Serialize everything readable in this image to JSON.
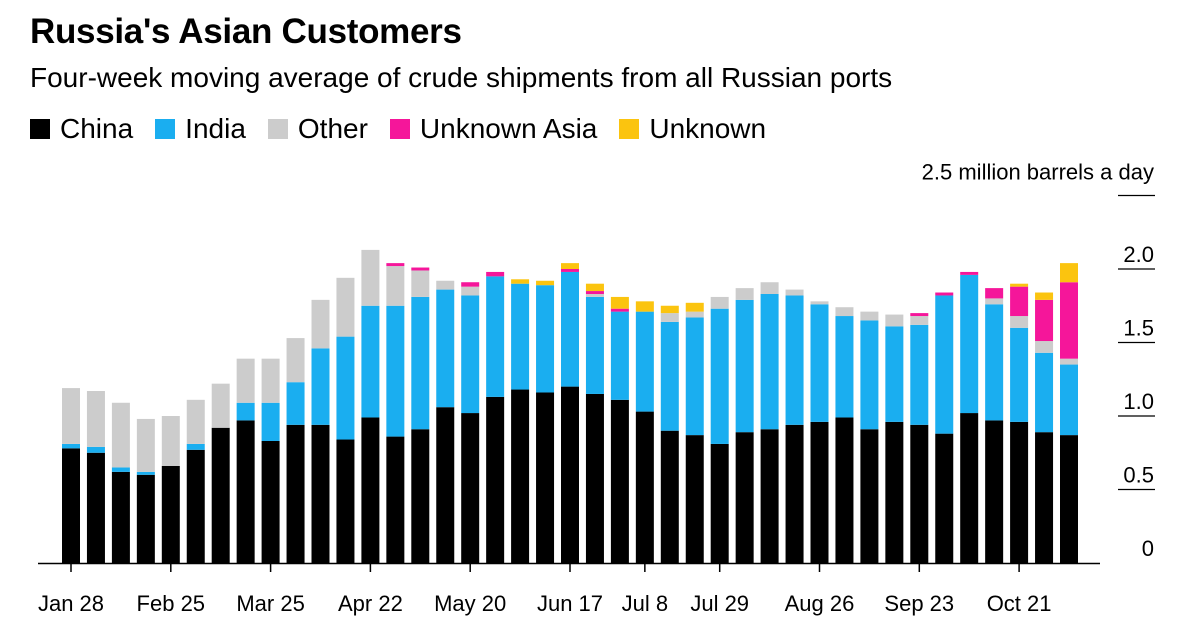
{
  "title": "Russia's Asian Customers",
  "subtitle": "Four-week moving average of crude shipments from all Russian ports",
  "colors": {
    "China": "#000000",
    "India": "#1aaef0",
    "Other": "#cccccc",
    "Unknown Asia": "#f5169a",
    "Unknown": "#fbc40f"
  },
  "chart_data": {
    "type": "bar",
    "stacked": true,
    "unit_label": "2.5 million barrels a day",
    "ylim": [
      0,
      2.5
    ],
    "y_ticks": [
      {
        "value": 0,
        "label": "0"
      },
      {
        "value": 0.5,
        "label": "0.5"
      },
      {
        "value": 1.0,
        "label": "1.0"
      },
      {
        "value": 1.5,
        "label": "1.5"
      },
      {
        "value": 2.0,
        "label": "2.0"
      }
    ],
    "x_tick_labels": [
      {
        "index": 0,
        "label": "Jan 28"
      },
      {
        "index": 4,
        "label": "Feb 25"
      },
      {
        "index": 8,
        "label": "Mar 25"
      },
      {
        "index": 12,
        "label": "Apr 22"
      },
      {
        "index": 16,
        "label": "May 20"
      },
      {
        "index": 20,
        "label": "Jun 17"
      },
      {
        "index": 23,
        "label": "Jul 8"
      },
      {
        "index": 26,
        "label": "Jul 29"
      },
      {
        "index": 30,
        "label": "Aug 26"
      },
      {
        "index": 34,
        "label": "Sep 23"
      },
      {
        "index": 38,
        "label": "Oct 21"
      }
    ],
    "legend": [
      "China",
      "India",
      "Other",
      "Unknown Asia",
      "Unknown"
    ],
    "series": [
      {
        "name": "China",
        "values": [
          0.78,
          0.75,
          0.62,
          0.6,
          0.66,
          0.77,
          0.92,
          0.97,
          0.83,
          0.94,
          0.94,
          0.84,
          0.99,
          0.86,
          0.91,
          1.06,
          1.02,
          1.13,
          1.18,
          1.16,
          1.2,
          1.15,
          1.11,
          1.03,
          0.9,
          0.87,
          0.81,
          0.89,
          0.91,
          0.94,
          0.96,
          0.99,
          0.91,
          0.96,
          0.94,
          0.88,
          1.02,
          0.97,
          0.96,
          0.89,
          0.87
        ]
      },
      {
        "name": "India",
        "values": [
          0.03,
          0.04,
          0.03,
          0.02,
          0.0,
          0.04,
          0.0,
          0.12,
          0.26,
          0.29,
          0.52,
          0.7,
          0.76,
          0.89,
          0.9,
          0.8,
          0.8,
          0.82,
          0.72,
          0.73,
          0.78,
          0.66,
          0.6,
          0.68,
          0.74,
          0.8,
          0.92,
          0.9,
          0.92,
          0.88,
          0.8,
          0.69,
          0.74,
          0.65,
          0.68,
          0.94,
          0.94,
          0.79,
          0.64,
          0.54,
          0.48
        ]
      },
      {
        "name": "Other",
        "values": [
          0.38,
          0.38,
          0.44,
          0.36,
          0.34,
          0.3,
          0.3,
          0.3,
          0.3,
          0.3,
          0.33,
          0.4,
          0.38,
          0.27,
          0.18,
          0.06,
          0.06,
          0.0,
          0.0,
          0.0,
          0.0,
          0.02,
          0.0,
          0.0,
          0.06,
          0.04,
          0.08,
          0.08,
          0.08,
          0.04,
          0.02,
          0.06,
          0.06,
          0.08,
          0.06,
          0.0,
          0.0,
          0.04,
          0.08,
          0.08,
          0.04
        ]
      },
      {
        "name": "Unknown Asia",
        "values": [
          0.0,
          0.0,
          0.0,
          0.0,
          0.0,
          0.0,
          0.0,
          0.0,
          0.0,
          0.0,
          0.0,
          0.0,
          0.0,
          0.02,
          0.02,
          0.0,
          0.03,
          0.03,
          0.0,
          0.0,
          0.02,
          0.02,
          0.02,
          0.0,
          0.0,
          0.0,
          0.0,
          0.0,
          0.0,
          0.0,
          0.0,
          0.0,
          0.0,
          0.0,
          0.02,
          0.02,
          0.02,
          0.07,
          0.2,
          0.28,
          0.52
        ]
      },
      {
        "name": "Unknown",
        "values": [
          0.0,
          0.0,
          0.0,
          0.0,
          0.0,
          0.0,
          0.0,
          0.0,
          0.0,
          0.0,
          0.0,
          0.0,
          0.0,
          0.0,
          0.0,
          0.0,
          0.0,
          0.0,
          0.03,
          0.03,
          0.04,
          0.05,
          0.08,
          0.07,
          0.05,
          0.06,
          0.0,
          0.0,
          0.0,
          0.0,
          0.0,
          0.0,
          0.0,
          0.0,
          0.0,
          0.0,
          0.0,
          0.0,
          0.02,
          0.05,
          0.13
        ]
      }
    ]
  }
}
